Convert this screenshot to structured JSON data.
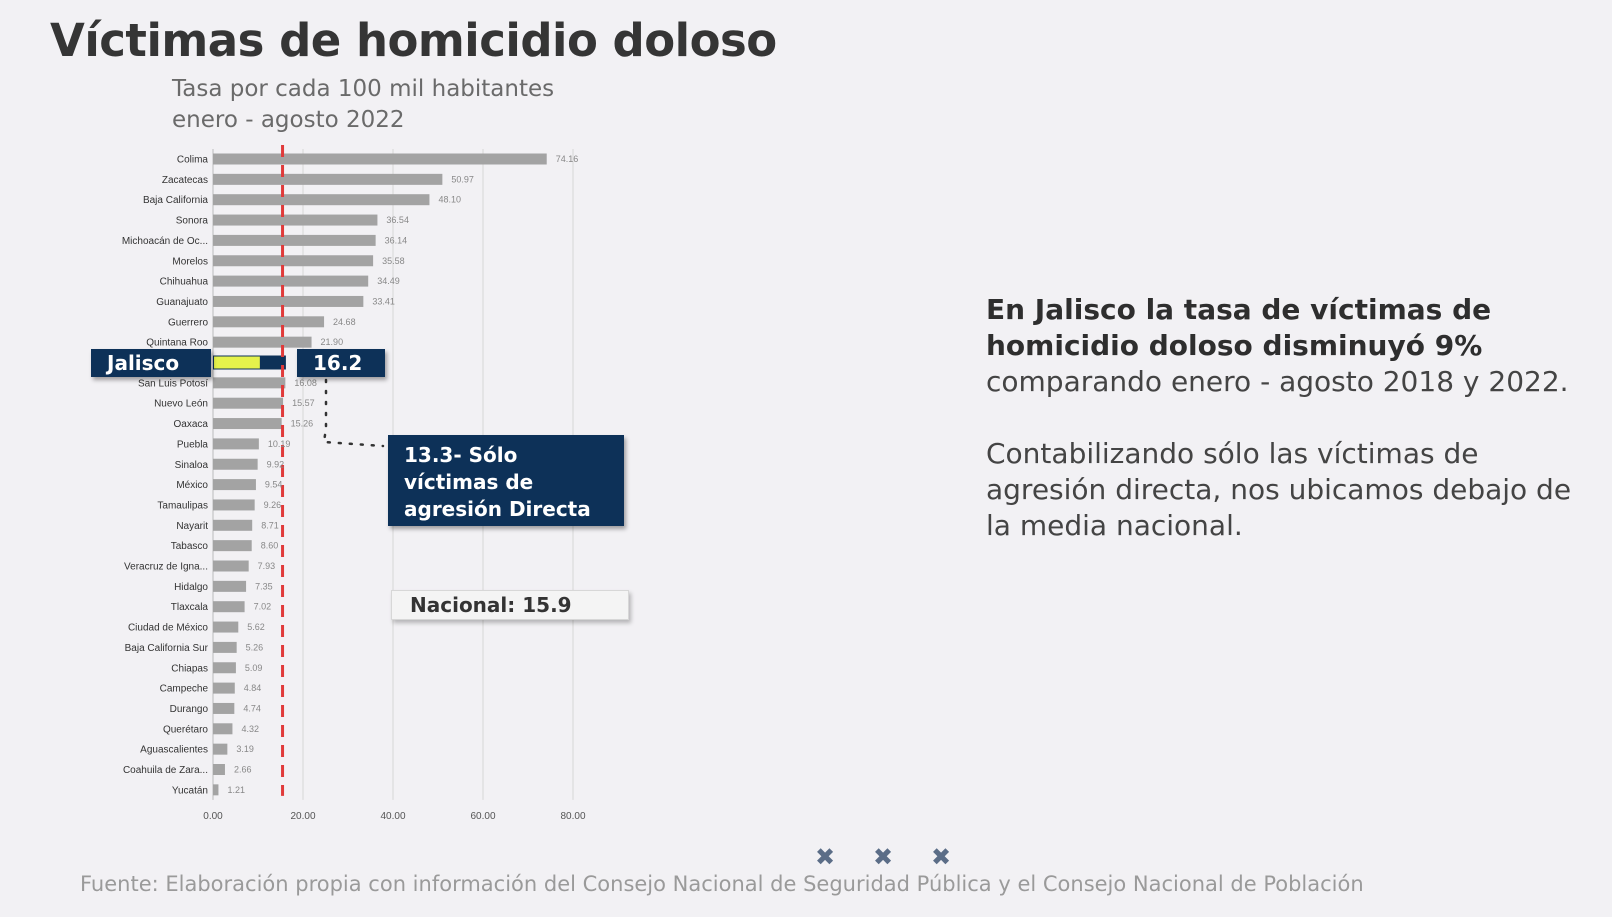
{
  "title": "Víctimas de homicidio doloso",
  "subtitle_1": "Tasa por cada 100 mil habitantes",
  "subtitle_2": "enero - agosto 2022",
  "chart_data": {
    "type": "bar",
    "orientation": "horizontal",
    "categories": [
      "Colima",
      "Zacatecas",
      "Baja California",
      "Sonora",
      "Michoacán de Oc...",
      "Morelos",
      "Chihuahua",
      "Guanajuato",
      "Guerrero",
      "Quintana Roo",
      "Jalisco",
      "San Luis Potosí",
      "Nuevo León",
      "Oaxaca",
      "Puebla",
      "Sinaloa",
      "México",
      "Tamaulipas",
      "Nayarit",
      "Tabasco",
      "Veracruz de Igna...",
      "Hidalgo",
      "Tlaxcala",
      "Ciudad de México",
      "Baja California Sur",
      "Chiapas",
      "Campeche",
      "Durango",
      "Querétaro",
      "Aguascalientes",
      "Coahuila de Zara...",
      "Yucatán"
    ],
    "values": [
      74.16,
      50.97,
      48.1,
      36.54,
      36.14,
      35.58,
      34.49,
      33.41,
      24.68,
      21.9,
      16.2,
      16.08,
      15.57,
      15.26,
      10.19,
      9.92,
      9.54,
      9.26,
      8.71,
      8.6,
      7.93,
      7.35,
      7.02,
      5.62,
      5.26,
      5.09,
      4.84,
      4.74,
      4.32,
      3.19,
      2.66,
      1.21
    ],
    "value_labels": [
      "74.16",
      "50.97",
      "48.10",
      "36.54",
      "36.14",
      "35.58",
      "34.49",
      "33.41",
      "24.68",
      "21.90",
      "",
      "16.08",
      "15.57",
      "15.26",
      "10.19",
      "9.92",
      "9.54",
      "9.26",
      "8.71",
      "8.60",
      "7.93",
      "7.35",
      "7.02",
      "5.62",
      "5.26",
      "5.09",
      "4.84",
      "4.74",
      "4.32",
      "3.19",
      "2.66",
      "1.21"
    ],
    "highlight": {
      "category": "Jalisco",
      "value": 16.2,
      "direct_value": 13.3
    },
    "reference_line": {
      "label": "Nacional: 15.9",
      "value": 15.9,
      "color": "#e03a3a"
    },
    "xlim": [
      0,
      80
    ],
    "xticks": [
      0,
      20,
      40,
      60,
      80
    ],
    "xtick_labels": [
      "0.00",
      "20.00",
      "40.00",
      "60.00",
      "80.00"
    ],
    "bar_color": "#a3a3a3",
    "highlight_color": "#e5f24b",
    "grid": true
  },
  "callouts": {
    "jalisco_label": "Jalisco",
    "jalisco_value": "16.2",
    "direct_line_1": "13.3- Sólo",
    "direct_line_2": "víctimas de",
    "direct_line_3": "agresión Directa",
    "nacional": "Nacional: 15.9"
  },
  "summary": {
    "bold": "En Jalisco la tasa de víctimas de homicidio doloso disminuyó 9%",
    "rest": " comparando enero - agosto 2018 y 2022.",
    "paragraph_2": "Contabilizando sólo las víctimas de agresión directa, nos ubicamos debajo de la media nacional."
  },
  "nav": {
    "items": [
      "✖",
      "✖",
      "✖"
    ]
  },
  "source": "Fuente: Elaboración propia con información del Consejo Nacional de Seguridad Pública y el Consejo Nacional de Población"
}
